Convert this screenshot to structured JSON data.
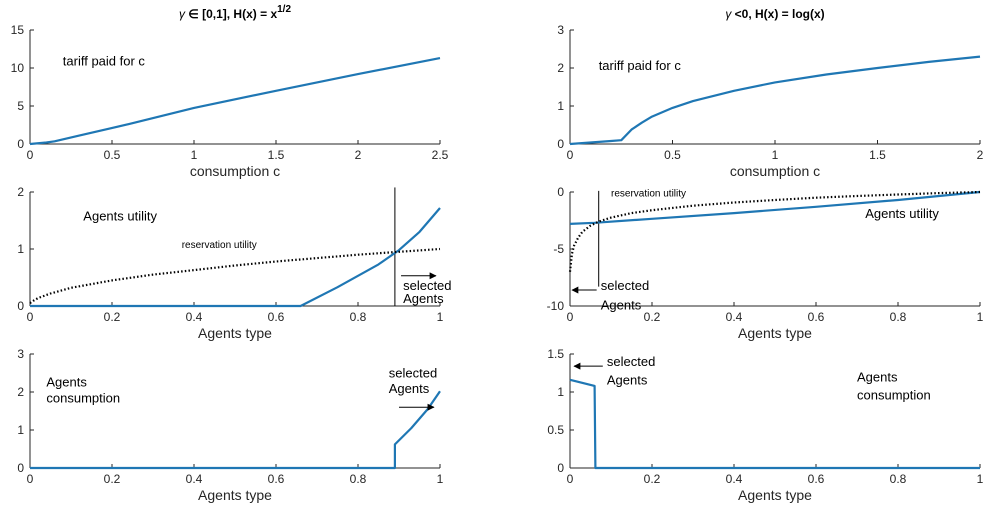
{
  "colors": {
    "series": "#1f77b4",
    "reservation": "#000000",
    "axis": "#262626"
  },
  "chart_data": [
    {
      "id": "p1",
      "type": "line",
      "title_parts": {
        "pre": "",
        "mid": " ∈ [0,1], H(x)  = x",
        "sup": "1/2"
      },
      "xlabel": "consumption c",
      "ylabel": "",
      "xlim": [
        0,
        2.5
      ],
      "ylim": [
        0,
        15
      ],
      "xticks": [
        0,
        0.5,
        1,
        1.5,
        2,
        2.5
      ],
      "yticks": [
        0,
        5,
        10,
        15
      ],
      "series": [
        {
          "style": "solid",
          "x": [
            0,
            0.1,
            0.15,
            0.3,
            0.6,
            1.0,
            1.5,
            2.0,
            2.5
          ],
          "y": [
            0,
            0.2,
            0.35,
            1.1,
            2.6,
            4.75,
            7.0,
            9.2,
            11.3
          ]
        }
      ],
      "annotations": [
        {
          "text": "tariff paid for c",
          "x": 0.2,
          "y": 10.3
        }
      ]
    },
    {
      "id": "p2",
      "type": "line",
      "title_parts": {
        "pre": "",
        "mid": " <0, H(x) = log(x)",
        "sup": ""
      },
      "xlabel": "consumption c",
      "ylabel": "",
      "xlim": [
        0,
        2
      ],
      "ylim": [
        0,
        3
      ],
      "xticks": [
        0,
        0.5,
        1,
        1.5,
        2
      ],
      "yticks": [
        0,
        1,
        2,
        3
      ],
      "series": [
        {
          "style": "solid",
          "x": [
            0,
            0.1,
            0.2,
            0.25,
            0.3,
            0.35,
            0.4,
            0.5,
            0.6,
            0.8,
            1.0,
            1.25,
            1.5,
            1.75,
            2.0
          ],
          "y": [
            0,
            0.04,
            0.08,
            0.1,
            0.38,
            0.56,
            0.72,
            0.95,
            1.13,
            1.4,
            1.62,
            1.83,
            2.0,
            2.16,
            2.3
          ]
        }
      ],
      "annotations": [
        {
          "text": "tariff paid for c",
          "x": 0.14,
          "y": 1.95
        }
      ]
    },
    {
      "id": "p3",
      "type": "line",
      "title_parts": null,
      "xlabel": "Agents type",
      "ylabel": "",
      "xlim": [
        0,
        1
      ],
      "ylim": [
        0,
        2
      ],
      "xticks": [
        0,
        0.2,
        0.4,
        0.6,
        0.8,
        1
      ],
      "yticks": [
        0,
        1,
        2
      ],
      "series": [
        {
          "style": "solid",
          "x": [
            0,
            0.66,
            0.75,
            0.85,
            0.9,
            0.95,
            1.0
          ],
          "y": [
            0,
            0,
            0.33,
            0.73,
            0.98,
            1.3,
            1.72
          ]
        },
        {
          "style": "dotted",
          "x": [
            0,
            0.01,
            0.02,
            0.05,
            0.1,
            0.2,
            0.3,
            0.4,
            0.5,
            0.6,
            0.7,
            0.8,
            0.9,
            1.0
          ],
          "y": [
            0.05,
            0.1,
            0.14,
            0.22,
            0.32,
            0.45,
            0.55,
            0.63,
            0.71,
            0.78,
            0.84,
            0.9,
            0.95,
            1.0
          ]
        }
      ],
      "vlines": [
        {
          "x": 0.89,
          "y0": 0,
          "y1": 2.08
        }
      ],
      "arrows": [
        {
          "x0": 0.905,
          "y0": 0.53,
          "x1": 0.99,
          "y1": 0.53
        }
      ],
      "annotations": [
        {
          "text": "Agents utility",
          "x": 0.13,
          "y": 1.5
        },
        {
          "text": "reservation utility",
          "x": 0.37,
          "y": 1.02,
          "small": true
        },
        {
          "text": "selected",
          "x": 0.91,
          "y": 0.28
        },
        {
          "text": "Agents",
          "x": 0.91,
          "y": 0.05
        }
      ]
    },
    {
      "id": "p4",
      "type": "line",
      "title_parts": null,
      "xlabel": "Agents type",
      "ylabel": "",
      "xlim": [
        0,
        1
      ],
      "ylim": [
        -10,
        0
      ],
      "xticks": [
        0,
        0.2,
        0.4,
        0.6,
        0.8,
        1
      ],
      "yticks": [
        -10,
        -5,
        0
      ],
      "series": [
        {
          "style": "solid",
          "x": [
            0,
            0.06,
            0.2,
            0.4,
            0.6,
            0.8,
            1.0
          ],
          "y": [
            -2.8,
            -2.7,
            -2.35,
            -1.85,
            -1.3,
            -0.7,
            0
          ]
        },
        {
          "style": "dotted",
          "x": [
            0,
            0.005,
            0.01,
            0.02,
            0.03,
            0.05,
            0.07,
            0.1,
            0.15,
            0.2,
            0.3,
            0.4,
            0.5,
            0.6,
            0.7,
            0.8,
            0.9,
            1.0
          ],
          "y": [
            -7.0,
            -5.4,
            -4.7,
            -4.0,
            -3.5,
            -2.95,
            -2.6,
            -2.25,
            -1.85,
            -1.6,
            -1.2,
            -0.92,
            -0.7,
            -0.5,
            -0.35,
            -0.22,
            -0.1,
            0
          ]
        }
      ],
      "vlines": [
        {
          "x": 0.07,
          "y0": -8.3,
          "y1": 0.1
        }
      ],
      "arrows": [
        {
          "x0": 0.065,
          "y0": -8.6,
          "x1": 0.005,
          "y1": -8.6
        }
      ],
      "annotations": [
        {
          "text": "Agents utility",
          "x": 0.72,
          "y": -2.3
        },
        {
          "text": "reservation utility",
          "x": 0.1,
          "y": -0.4,
          "small": true
        },
        {
          "text": "selected",
          "x": 0.075,
          "y": -8.6
        },
        {
          "text": "Agents",
          "x": 0.075,
          "y": -10.3
        }
      ]
    },
    {
      "id": "p5",
      "type": "line",
      "title_parts": null,
      "xlabel": "Agents type",
      "ylabel": "",
      "xlim": [
        0,
        1
      ],
      "ylim": [
        0,
        3
      ],
      "xticks": [
        0,
        0.2,
        0.4,
        0.6,
        0.8,
        1
      ],
      "yticks": [
        0,
        1,
        2,
        3
      ],
      "series": [
        {
          "style": "solid",
          "x": [
            0,
            0.89,
            0.89,
            0.93,
            0.97,
            1.0
          ],
          "y": [
            0,
            0,
            0.62,
            1.05,
            1.55,
            2.02
          ]
        }
      ],
      "arrows": [
        {
          "x0": 0.9,
          "y0": 1.6,
          "x1": 0.985,
          "y1": 1.6
        }
      ],
      "annotations": [
        {
          "text": "Agents",
          "x": 0.04,
          "y": 2.15
        },
        {
          "text": "consumption",
          "x": 0.04,
          "y": 1.72
        },
        {
          "text": "selected",
          "x": 0.875,
          "y": 2.38
        },
        {
          "text": "Agents",
          "x": 0.875,
          "y": 1.98
        }
      ]
    },
    {
      "id": "p6",
      "type": "line",
      "title_parts": null,
      "xlabel": "Agents type",
      "ylabel": "",
      "xlim": [
        0,
        1
      ],
      "ylim": [
        0,
        1.5
      ],
      "xticks": [
        0,
        0.2,
        0.4,
        0.6,
        0.8,
        1
      ],
      "yticks": [
        0,
        0.5,
        1,
        1.5
      ],
      "series": [
        {
          "style": "solid",
          "x": [
            0,
            0.06,
            0.062,
            1.0
          ],
          "y": [
            1.16,
            1.08,
            0,
            0
          ]
        }
      ],
      "arrows": [
        {
          "x0": 0.08,
          "y0": 1.34,
          "x1": 0.01,
          "y1": 1.34
        }
      ],
      "annotations": [
        {
          "text": "selected",
          "x": 0.09,
          "y": 1.34
        },
        {
          "text": "Agents",
          "x": 0.09,
          "y": 1.1
        },
        {
          "text": "Agents",
          "x": 0.7,
          "y": 1.14
        },
        {
          "text": "consumption",
          "x": 0.7,
          "y": 0.9
        }
      ]
    }
  ]
}
